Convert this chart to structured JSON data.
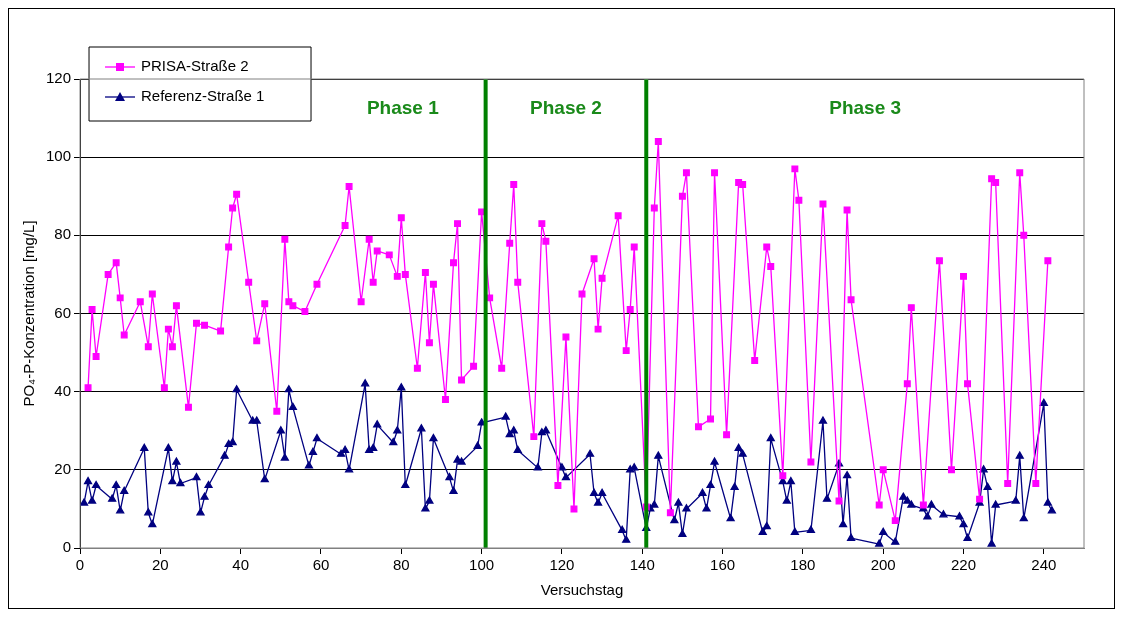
{
  "chart_data": {
    "type": "line",
    "xlabel": "Versuchstag",
    "ylabel": "PO₄-P-Konzentration [mg/L]",
    "xlim": [
      0,
      250
    ],
    "xticks": [
      0,
      20,
      40,
      60,
      80,
      100,
      120,
      140,
      160,
      180,
      200,
      220,
      240
    ],
    "ylim": [
      0,
      120
    ],
    "yticks": [
      0,
      20,
      40,
      60,
      80,
      100,
      120
    ],
    "grid": "y",
    "legend": "top left",
    "line_style": "solid",
    "series": [
      {
        "name": "PRISA-Straße 2",
        "color": "#ff00ff",
        "marker": "square",
        "x": [
          2,
          3,
          4,
          7,
          9,
          10,
          11,
          15,
          17,
          18,
          21,
          22,
          23,
          24,
          27,
          29,
          31,
          35,
          37,
          38,
          39,
          42,
          44,
          46,
          49,
          51,
          52,
          53,
          56,
          59,
          66,
          67,
          70,
          72,
          73,
          74,
          77,
          79,
          80,
          81,
          84,
          86,
          87,
          88,
          91,
          93,
          94,
          95,
          98,
          100,
          102,
          105,
          107,
          108,
          109,
          113,
          115,
          116,
          119,
          121,
          123,
          125,
          128,
          129,
          130,
          134,
          136,
          137,
          138,
          141,
          143,
          144,
          147,
          150,
          151,
          154,
          157,
          158,
          161,
          164,
          165,
          168,
          171,
          172,
          175,
          178,
          179,
          182,
          185,
          189,
          191,
          192,
          199,
          200,
          203,
          206,
          207,
          210,
          214,
          217,
          220,
          221,
          224,
          227,
          228,
          231,
          234,
          235,
          238,
          241
        ],
        "values": [
          41,
          61,
          49,
          70,
          73,
          64,
          54.5,
          63,
          51.5,
          65,
          41,
          56,
          51.5,
          62,
          36,
          57.5,
          57,
          55.5,
          77,
          87,
          90.5,
          68,
          53,
          62.5,
          35,
          79,
          63,
          62,
          60.5,
          67.5,
          82.5,
          92.5,
          63,
          79,
          68,
          76,
          75,
          69.5,
          84.5,
          70,
          46,
          70.5,
          52.5,
          67.5,
          38,
          73,
          83,
          43,
          46.5,
          86,
          64,
          46,
          78,
          93,
          68,
          28.5,
          83,
          78.5,
          16,
          54,
          10,
          65,
          74,
          56,
          69,
          85,
          50.5,
          61,
          77,
          10.5,
          87,
          104,
          9,
          90,
          96,
          31,
          33,
          96,
          29,
          93.5,
          93,
          48,
          77,
          72,
          18.5,
          97,
          89,
          22,
          88,
          12,
          86.5,
          63.5,
          11,
          20,
          7,
          42,
          61.5,
          11,
          73.5,
          20,
          69.5,
          42,
          12.5,
          94.5,
          93.5,
          16.5,
          96,
          80,
          16.5,
          73.5
        ]
      },
      {
        "name": "Referenz-Straße 1",
        "color": "#000080",
        "marker": "triangle",
        "x": [
          1,
          2,
          3,
          4,
          8,
          9,
          10,
          11,
          16,
          17,
          18,
          22,
          23,
          24,
          25,
          29,
          30,
          31,
          32,
          36,
          37,
          38,
          39,
          43,
          44,
          46,
          50,
          51,
          52,
          53,
          57,
          58,
          59,
          65,
          66,
          67,
          71,
          72,
          73,
          74,
          78,
          79,
          80,
          81,
          85,
          86,
          87,
          88,
          92,
          93,
          94,
          95,
          99,
          100,
          106,
          107,
          108,
          109,
          114,
          115,
          116,
          120,
          121,
          127,
          128,
          129,
          130,
          135,
          136,
          137,
          138,
          141,
          142,
          143,
          144,
          148,
          149,
          150,
          151,
          155,
          156,
          157,
          158,
          162,
          163,
          164,
          165,
          170,
          171,
          172,
          175,
          176,
          177,
          178,
          182,
          185,
          186,
          189,
          190,
          191,
          192,
          199,
          200,
          203,
          205,
          206,
          207,
          210,
          211,
          212,
          215,
          219,
          220,
          221,
          224,
          225,
          226,
          227,
          228,
          233,
          234,
          235,
          240,
          241,
          242
        ],
        "values": [
          11.5,
          17,
          12,
          16,
          12.5,
          16,
          9.5,
          14.5,
          25.5,
          9,
          6,
          25.5,
          17,
          22,
          16.5,
          18,
          9,
          13,
          16,
          23.5,
          26.5,
          27,
          40.5,
          32.5,
          32.5,
          17.5,
          30,
          23,
          40.5,
          36,
          21,
          24.5,
          28,
          24,
          25,
          20,
          42,
          25,
          25.5,
          31.5,
          27,
          30,
          41,
          16,
          30.5,
          10,
          12,
          28,
          18,
          14.5,
          22.5,
          22,
          26,
          32,
          33.5,
          29,
          30,
          25,
          20.5,
          29.5,
          30,
          20.5,
          18,
          24,
          14,
          11.5,
          14,
          4.5,
          2,
          20,
          20.5,
          5,
          10,
          11,
          23.5,
          7,
          11.5,
          3.5,
          10,
          14,
          10,
          16,
          22,
          7.5,
          15.5,
          25.5,
          24,
          4,
          5.5,
          28,
          17,
          12,
          17,
          4,
          4.5,
          32.5,
          12.5,
          21.5,
          6,
          18.5,
          2.5,
          1,
          4,
          1.5,
          13,
          12,
          11,
          10,
          8,
          11,
          8.5,
          8,
          6,
          2.5,
          11.5,
          20,
          15.5,
          1,
          11,
          12,
          23.5,
          7.5,
          37,
          11.5,
          9.5
        ]
      }
    ],
    "ref_lines": [
      {
        "axis": "x",
        "value": 101,
        "color": "#008000"
      },
      {
        "axis": "x",
        "value": 141,
        "color": "#008000"
      }
    ],
    "annotations": [
      "Phase 1",
      "Phase 2",
      "Phase 3"
    ]
  }
}
